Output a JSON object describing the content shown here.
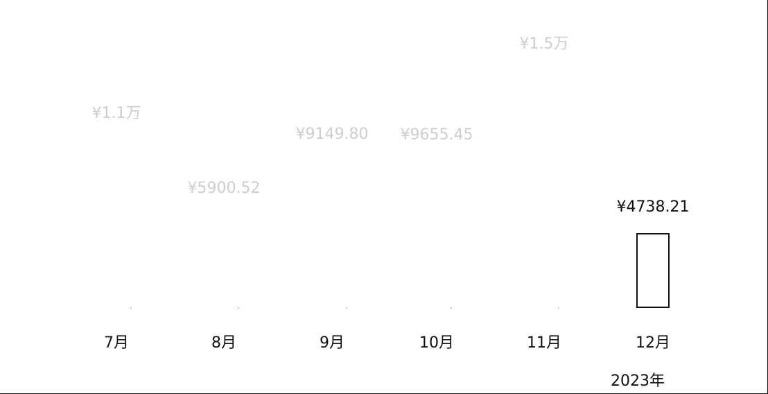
{
  "chart_data": {
    "type": "bar",
    "categories": [
      "7月",
      "8月",
      "9月",
      "10月",
      "11月",
      "12月"
    ],
    "values": [
      11000,
      5900.52,
      9149.8,
      9655.45,
      15000,
      4738.21
    ],
    "data_labels": [
      "¥1.1万",
      "¥5900.52",
      "¥9149.80",
      "¥9655.45",
      "¥1.5万",
      "¥4738.21"
    ],
    "selected_index": 5,
    "year_label": "2023年",
    "grid": false,
    "legend": "none",
    "colors": {
      "active_text": "#111111",
      "inactive_text": "#bdbdbd",
      "bar_stroke": "#111111",
      "bar_fill": "#ffffff"
    }
  }
}
